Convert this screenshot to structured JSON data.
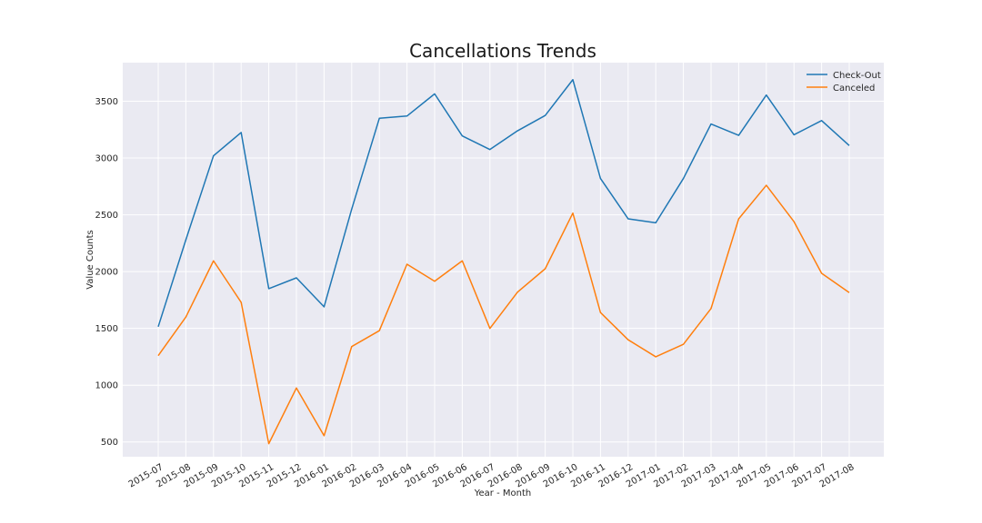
{
  "chart_data": {
    "type": "line",
    "title": "Cancellations Trends",
    "xlabel": "Year - Month",
    "ylabel": "Value Counts",
    "categories": [
      "2015-07",
      "2015-08",
      "2015-09",
      "2015-10",
      "2015-11",
      "2015-12",
      "2016-01",
      "2016-02",
      "2016-03",
      "2016-04",
      "2016-05",
      "2016-06",
      "2016-07",
      "2016-08",
      "2016-09",
      "2016-10",
      "2016-11",
      "2016-12",
      "2017-01",
      "2017-02",
      "2017-03",
      "2017-04",
      "2017-05",
      "2017-06",
      "2017-07",
      "2017-08"
    ],
    "yticks": [
      500,
      1000,
      1500,
      2000,
      2500,
      3000,
      3500
    ],
    "ylim": [
      370,
      3840
    ],
    "series": [
      {
        "name": "Check-Out",
        "color": "#1f77b4",
        "values": [
          1515,
          2280,
          3020,
          3225,
          1850,
          1945,
          1690,
          2550,
          3350,
          3370,
          3565,
          3195,
          3075,
          3240,
          3375,
          3690,
          2820,
          2465,
          2430,
          2820,
          3300,
          3200,
          3555,
          3205,
          3330,
          3110
        ]
      },
      {
        "name": "Canceled",
        "color": "#ff7f0e",
        "values": [
          1260,
          1600,
          2095,
          1730,
          485,
          975,
          555,
          1340,
          1480,
          2065,
          1915,
          2095,
          1500,
          1820,
          2025,
          2515,
          1640,
          1400,
          1250,
          1360,
          1675,
          2465,
          2760,
          2440,
          1985,
          1815
        ]
      }
    ],
    "grid": true,
    "legend_position": "top-right",
    "background": "#eaeaf2"
  }
}
